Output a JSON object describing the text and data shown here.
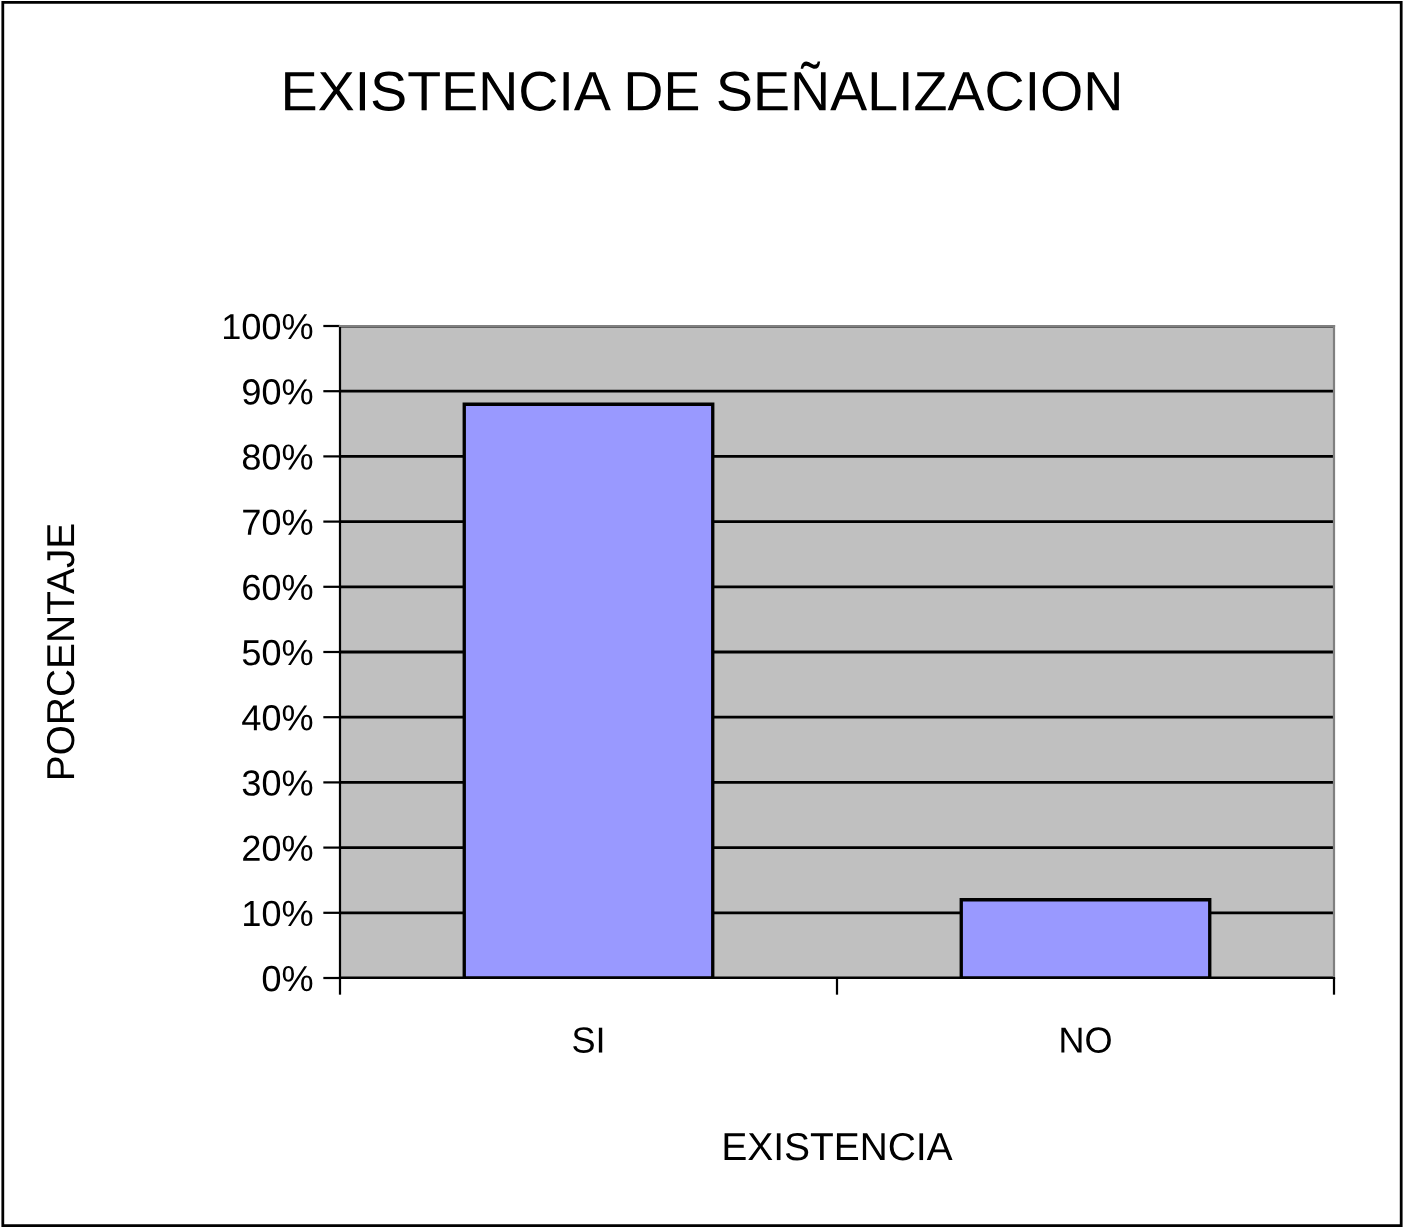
{
  "chart_data": {
    "type": "bar",
    "title": "EXISTENCIA DE SEÑALIZACION",
    "xlabel": "EXISTENCIA",
    "ylabel": "PORCENTAJE",
    "categories": [
      "SI",
      "NO"
    ],
    "values": [
      88,
      12
    ],
    "color": "#9999ff",
    "ylim": [
      0,
      100
    ],
    "yticks": [
      {
        "value": 0,
        "label": "0%"
      },
      {
        "value": 10,
        "label": "10%"
      },
      {
        "value": 20,
        "label": "20%"
      },
      {
        "value": 30,
        "label": "30%"
      },
      {
        "value": 40,
        "label": "40%"
      },
      {
        "value": 50,
        "label": "50%"
      },
      {
        "value": 60,
        "label": "60%"
      },
      {
        "value": 70,
        "label": "70%"
      },
      {
        "value": 80,
        "label": "80%"
      },
      {
        "value": 90,
        "label": "90%"
      },
      {
        "value": 100,
        "label": "100%"
      }
    ],
    "grid": "y"
  }
}
